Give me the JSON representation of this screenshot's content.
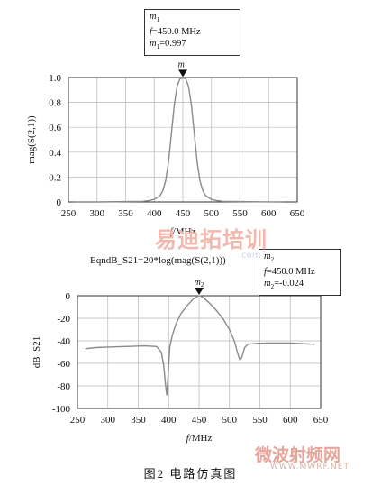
{
  "colors": {
    "trace": "#8a8a8a",
    "grid": "#b8b8b8",
    "axis": "#333333",
    "watermark1": "#f2b8ae",
    "watermark2": "#e6a59a"
  },
  "chart_data": [
    {
      "type": "line",
      "xlabel": "f/MHz",
      "xlabel_italic_part": "f",
      "xlabel_rest": "/MHz",
      "ylabel": "mag(S(2,1))",
      "xlim": [
        250,
        650
      ],
      "ylim": [
        0,
        1.0
      ],
      "x_ticks": [
        "250",
        "300",
        "350",
        "400",
        "450",
        "500",
        "550",
        "600",
        "650"
      ],
      "y_ticks": [
        "0",
        "0.2",
        "0.4",
        "0.6",
        "0.8",
        "1.0"
      ],
      "grid": true,
      "series": [
        {
          "x": [
            260,
            300,
            350,
            380,
            390,
            400,
            410,
            415,
            420,
            425,
            430,
            435,
            440,
            445,
            450,
            455,
            460,
            465,
            470,
            475,
            480,
            485,
            490,
            500,
            510,
            520,
            550,
            600,
            625
          ],
          "values": [
            0.0,
            0.0,
            0.003,
            0.005,
            0.01,
            0.02,
            0.05,
            0.09,
            0.17,
            0.32,
            0.55,
            0.78,
            0.93,
            0.99,
            0.997,
            0.99,
            0.93,
            0.78,
            0.55,
            0.32,
            0.17,
            0.09,
            0.05,
            0.02,
            0.01,
            0.005,
            0.003,
            0.001,
            0.0
          ]
        }
      ],
      "marker": {
        "name": "m1",
        "name_sub": "1",
        "x": 450,
        "y": 0.997,
        "label": "m",
        "freq_text": "=450.0  MHz",
        "value_text": "=0.997",
        "freq_prefix": "f"
      }
    },
    {
      "type": "line",
      "title": "EqndB_S21=20*log(mag(S(2,1)))",
      "xlabel": "f/MHz",
      "xlabel_italic_part": "f",
      "xlabel_rest": "/MHz",
      "ylabel": "dB_S21",
      "xlim": [
        250,
        650
      ],
      "ylim": [
        -100,
        0
      ],
      "x_ticks": [
        "250",
        "300",
        "350",
        "400",
        "450",
        "500",
        "550",
        "600",
        "650"
      ],
      "y_ticks": [
        "0",
        "-20",
        "-40",
        "-60",
        "-80",
        "-100"
      ],
      "grid": true,
      "series": [
        {
          "x": [
            263,
            280,
            300,
            330,
            360,
            380,
            388,
            392,
            395,
            397,
            399,
            402,
            406,
            412,
            420,
            430,
            440,
            448,
            452,
            460,
            470,
            480,
            490,
            500,
            508,
            513,
            517,
            520,
            525,
            530,
            540,
            560,
            600,
            640
          ],
          "values": [
            -47,
            -46,
            -45.5,
            -45,
            -44.5,
            -45,
            -50,
            -62,
            -80,
            -88,
            -70,
            -45,
            -35,
            -25,
            -16,
            -9,
            -3,
            -0.2,
            -0.024,
            -3,
            -8,
            -14,
            -21,
            -30,
            -40,
            -50,
            -57,
            -55,
            -46,
            -43,
            -42.5,
            -42,
            -42,
            -43
          ]
        }
      ],
      "marker": {
        "name": "m2",
        "name_sub": "2",
        "x": 450,
        "y": -0.024,
        "label": "m",
        "freq_text": "=450.0  MHz",
        "value_text": "=-0.024",
        "freq_prefix": "f"
      }
    }
  ],
  "caption": "图2  电路仿真图",
  "watermarks": {
    "top_main": "易迪拓培训",
    "top_url": ".com",
    "bottom_main": "微波射频网",
    "bottom_url": "WWW.MWRF.NET"
  }
}
